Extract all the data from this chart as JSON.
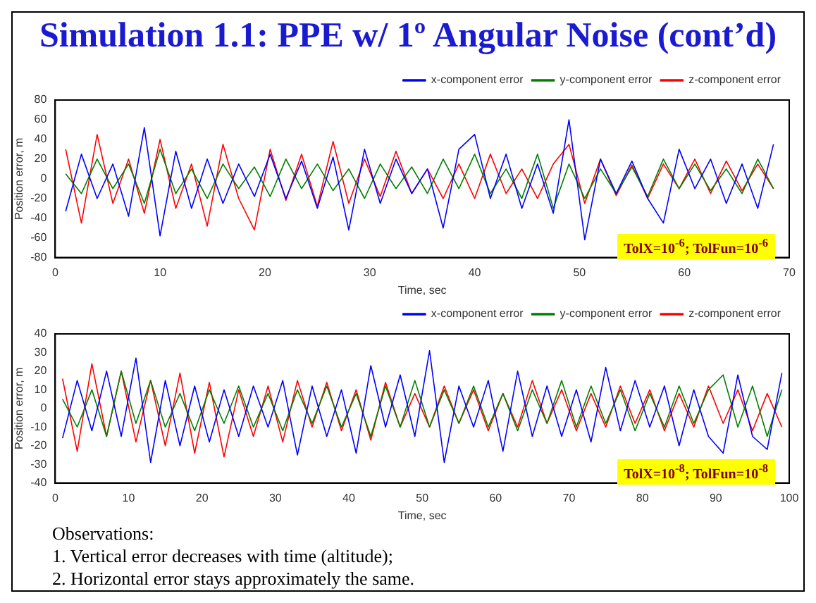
{
  "chart_data": [
    {
      "type": "line",
      "title": "Simulation 1.1: PPE w/ 1º Angular Noise (cont’d)",
      "xlabel": "Time, sec",
      "ylabel": "Position error, m",
      "legend": "top right",
      "grid": false,
      "marker": "none",
      "line_style": "solid",
      "x": [
        1,
        2.5,
        4,
        5.5,
        7,
        8.5,
        10,
        11.5,
        13,
        14.5,
        16,
        17.5,
        19,
        20.5,
        22,
        23.5,
        25,
        26.5,
        28,
        29.5,
        31,
        32.5,
        34,
        35.5,
        37,
        38.5,
        40,
        41.5,
        43,
        44.5,
        46,
        47.5,
        49,
        50.5,
        52,
        53.5,
        55,
        56.5,
        58,
        59.5,
        61,
        62.5,
        64,
        65.5,
        67,
        68.5
      ],
      "series": [
        {
          "name": "x-component error",
          "color": "#0000ff",
          "values": [
            -33,
            25,
            -20,
            15,
            -38,
            52,
            -58,
            28,
            -30,
            20,
            -25,
            15,
            -18,
            25,
            -20,
            18,
            -30,
            22,
            -52,
            30,
            -25,
            20,
            -15,
            10,
            -50,
            30,
            45,
            -20,
            25,
            -30,
            15,
            -35,
            60,
            -62,
            20,
            -15,
            18,
            -20,
            -45,
            30,
            -10,
            20,
            -25,
            15,
            -30,
            35
          ]
        },
        {
          "name": "y-component error",
          "color": "#008000",
          "values": [
            5,
            -15,
            20,
            -10,
            15,
            -25,
            30,
            -15,
            10,
            -20,
            15,
            -10,
            12,
            -18,
            20,
            -10,
            15,
            -12,
            10,
            -20,
            15,
            -10,
            12,
            -15,
            20,
            -10,
            25,
            -15,
            10,
            -20,
            25,
            -30,
            15,
            -20,
            10,
            -15,
            12,
            -18,
            20,
            -10,
            15,
            -12,
            10,
            -15,
            20,
            -10
          ]
        },
        {
          "name": "z-component error",
          "color": "#ff0000",
          "values": [
            30,
            -45,
            45,
            -25,
            20,
            -35,
            40,
            -30,
            15,
            -48,
            35,
            -20,
            -52,
            30,
            -22,
            25,
            -28,
            38,
            -25,
            20,
            -18,
            28,
            -15,
            10,
            -20,
            15,
            -20,
            25,
            -15,
            10,
            -20,
            15,
            35,
            -25,
            20,
            -17,
            14,
            -20,
            15,
            -10,
            20,
            -15,
            18,
            -12,
            15,
            -10
          ]
        }
      ],
      "xlim": [
        0,
        70
      ],
      "xticks": [
        0,
        10,
        20,
        30,
        40,
        50,
        60,
        70
      ],
      "ylim": [
        -80,
        80
      ],
      "yticks": [
        -80,
        -60,
        -40,
        -20,
        0,
        20,
        40,
        60,
        80
      ],
      "annotations": [
        "TolX=10$^{-6}$; TolFun=10$^{-6}$"
      ]
    },
    {
      "type": "line",
      "xlabel": "Time, sec",
      "ylabel": "Position error, m",
      "legend": "top right",
      "grid": false,
      "marker": "none",
      "line_style": "solid",
      "x": [
        1,
        3,
        5,
        7,
        9,
        11,
        13,
        15,
        17,
        19,
        21,
        23,
        25,
        27,
        29,
        31,
        33,
        35,
        37,
        39,
        41,
        43,
        45,
        47,
        49,
        51,
        53,
        55,
        57,
        59,
        61,
        63,
        65,
        67,
        69,
        71,
        73,
        75,
        77,
        79,
        81,
        83,
        85,
        87,
        89,
        91,
        93,
        95,
        97,
        99
      ],
      "series": [
        {
          "name": "x-component error",
          "color": "#0000ff",
          "values": [
            -16,
            15,
            -12,
            20,
            -15,
            27,
            -29,
            15,
            -20,
            12,
            -18,
            10,
            -15,
            12,
            -10,
            15,
            -25,
            12,
            -15,
            10,
            -24,
            23,
            -10,
            18,
            -15,
            31,
            -29,
            12,
            -10,
            15,
            -23,
            20,
            -15,
            12,
            -15,
            10,
            -18,
            22,
            -12,
            15,
            -10,
            12,
            -20,
            10,
            -15,
            -24,
            18,
            -15,
            -22,
            19
          ]
        },
        {
          "name": "y-component error",
          "color": "#008000",
          "values": [
            5,
            -10,
            10,
            -15,
            20,
            -8,
            15,
            -10,
            8,
            -12,
            10,
            -8,
            12,
            -10,
            8,
            -12,
            10,
            -8,
            12,
            -10,
            8,
            -15,
            12,
            -10,
            15,
            -10,
            10,
            -8,
            12,
            -10,
            8,
            -12,
            10,
            -8,
            15,
            -10,
            12,
            -8,
            10,
            -12,
            8,
            -10,
            12,
            -8,
            10,
            18,
            -10,
            12,
            -15,
            10
          ]
        },
        {
          "name": "z-component error",
          "color": "#ff0000",
          "values": [
            16,
            -23,
            24,
            -15,
            20,
            -18,
            15,
            -20,
            19,
            -24,
            14,
            -26,
            10,
            -15,
            12,
            -18,
            15,
            -10,
            14,
            -12,
            10,
            -17,
            14,
            -10,
            8,
            -10,
            12,
            -8,
            10,
            -12,
            8,
            -10,
            15,
            -8,
            10,
            -12,
            8,
            -10,
            12,
            -8,
            10,
            -12,
            8,
            -10,
            12,
            -8,
            10,
            -12,
            8,
            -10
          ]
        }
      ],
      "xlim": [
        0,
        100
      ],
      "xticks": [
        0,
        10,
        20,
        30,
        40,
        50,
        60,
        70,
        80,
        90,
        100
      ],
      "ylim": [
        -40,
        40
      ],
      "yticks": [
        -40,
        -30,
        -20,
        -10,
        0,
        10,
        20,
        30,
        40
      ],
      "annotations": [
        "TolX=10$^{-8}$; TolFun=10$^{-8}$",
        "Observations:",
        "1. Vertical error decreases with time (altitude);",
        "2. Horizontal error stays approximately the same."
      ]
    }
  ]
}
